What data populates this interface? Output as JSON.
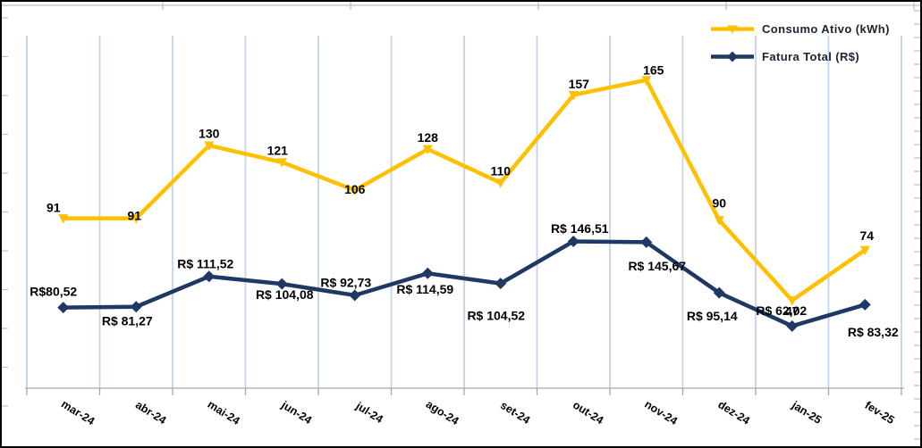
{
  "chart_data": {
    "type": "line",
    "title": "",
    "xlabel": "",
    "ylabel": "",
    "categories": [
      "mar-24",
      "abr-24",
      "mai-24",
      "jun-24",
      "jul-24",
      "ago-24",
      "set-24",
      "out-24",
      "nov-24",
      "dez-24",
      "jan-25",
      "fev-25"
    ],
    "x_tick_rotation_deg": 32,
    "grid": "vertical-only",
    "value_axes_hidden": true,
    "legend_position": "top-right",
    "series": [
      {
        "name": "Consumo Ativo (kWh)",
        "color": "#FFC000",
        "marker": "triangle-down",
        "ylim": [
          0,
          205
        ],
        "values": [
          91,
          91,
          130,
          121,
          106,
          128,
          110,
          157,
          165,
          90,
          47,
          74
        ],
        "labels": [
          "91",
          "91",
          "130",
          "121",
          "106",
          "128",
          "110",
          "157",
          "165",
          "90",
          "47",
          "74"
        ],
        "label_dx": [
          -11,
          -2,
          0,
          -5,
          0,
          0,
          0,
          6,
          8,
          0,
          0,
          2
        ],
        "label_dy": [
          -11,
          -2,
          -12,
          -12,
          0,
          -12,
          -12,
          -11,
          -10,
          -18,
          13,
          -15
        ]
      },
      {
        "name": "Fatura Total (R$)",
        "color": "#1F3864",
        "marker": "diamond",
        "ylim": [
          0,
          382
        ],
        "values": [
          80.52,
          81.27,
          111.52,
          104.08,
          92.73,
          114.59,
          104.52,
          146.51,
          145.67,
          95.14,
          62.02,
          83.32
        ],
        "labels": [
          "R$80,52",
          "R$ 81,27",
          "R$ 111,52",
          "R$ 104,08",
          "R$ 92,73",
          "R$ 114,59",
          "R$ 104,52",
          "R$ 146,51",
          "R$ 145,67",
          "R$ 95,14",
          "R$ 62,02",
          "R$ 83,32"
        ],
        "label_dx": [
          -11,
          -10,
          -4,
          3,
          -10,
          -3,
          -5,
          7,
          12,
          -8,
          -12,
          9
        ],
        "label_dy": [
          -17,
          17,
          -13,
          13,
          -13,
          19,
          37,
          -13,
          28,
          27,
          -16,
          32
        ]
      }
    ]
  },
  "legend": {
    "items": [
      {
        "label": "Consumo Ativo (kWh)"
      },
      {
        "label": "Fatura Total (R$)"
      }
    ]
  },
  "colors": {
    "consumo_line": "#FFC000",
    "fatura_line": "#1F3864",
    "gridline": "#C4D4EA",
    "axis_line": "#A6A6A6",
    "edge_ticks": "#BFBFBF",
    "data_label_text": "#000000",
    "x_tick_label_text": "#000000",
    "legend_text": "#1a2433",
    "border": "#000000",
    "background": "#FFFFFF"
  }
}
